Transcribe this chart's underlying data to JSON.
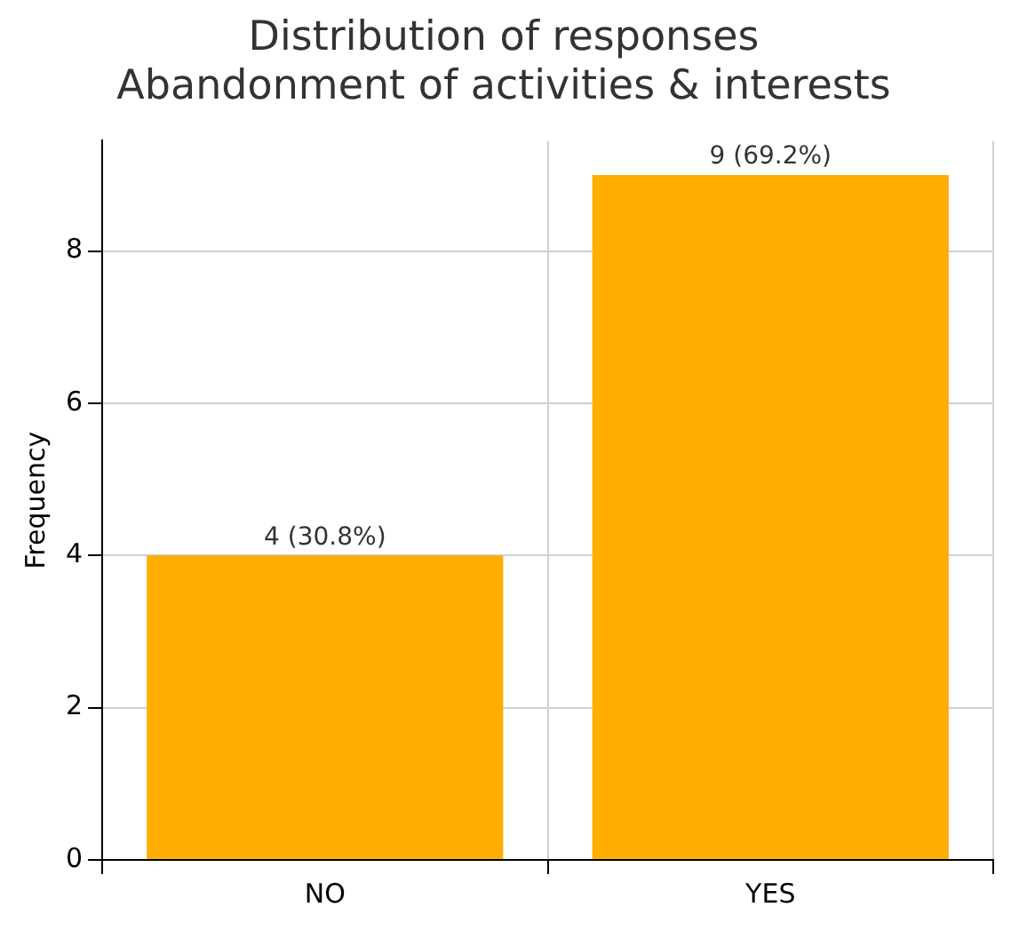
{
  "chart_data": {
    "type": "bar",
    "title": "Distribution of responses\nAbandonment of activities & interests",
    "ylabel": "Frequency",
    "categories": [
      "NO",
      "YES"
    ],
    "values": [
      4,
      9
    ],
    "color": "#ffae00",
    "value_labels": [
      "4 (30.8%)",
      "9 (69.2%)"
    ],
    "ylim": [
      0,
      9.45
    ],
    "yticks": [
      0,
      2,
      4,
      6,
      8
    ],
    "grid": true
  }
}
